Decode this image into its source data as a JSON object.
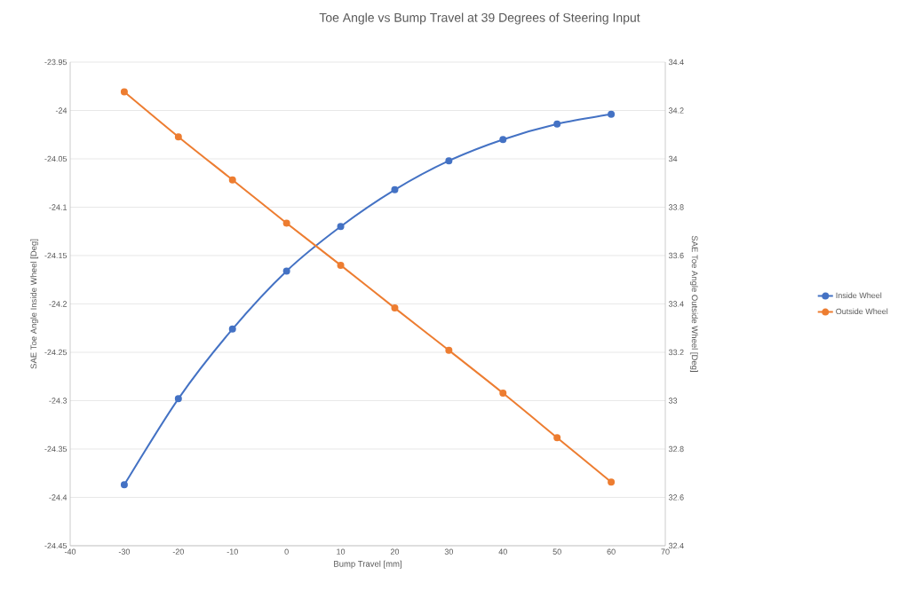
{
  "chart_data": {
    "type": "line",
    "title": "Toe Angle vs Bump Travel at 39 Degrees of Steering Input",
    "xlabel": "Bump Travel [mm]",
    "ylabel": "SAE Toe Angle Inside Wheel [Deg]",
    "y2label": "SAE Toe Angle Outside Wheel [Deg]",
    "x": [
      -30,
      -20,
      -10,
      0,
      10,
      20,
      30,
      40,
      50,
      60
    ],
    "xlim": [
      -40,
      70
    ],
    "xticks": [
      -40,
      -30,
      -20,
      -10,
      0,
      10,
      20,
      30,
      40,
      50,
      60,
      70
    ],
    "ylim": [
      -24.45,
      -23.95
    ],
    "yticks": [
      -24.45,
      -24.4,
      -24.35,
      -24.3,
      -24.25,
      -24.2,
      -24.15,
      -24.1,
      -24.05,
      -24,
      -23.95
    ],
    "y2lim": [
      32.4,
      34.4
    ],
    "y2ticks": [
      32.4,
      32.6,
      32.8,
      33,
      33.2,
      33.4,
      33.6,
      33.8,
      34,
      34.2,
      34.4
    ],
    "series": [
      {
        "name": "Inside Wheel",
        "color": "#4472c4",
        "values": [
          -24.387,
          -24.298,
          -24.226,
          -24.166,
          -24.12,
          -24.082,
          -24.052,
          -24.03,
          -24.014,
          -24.004
        ]
      },
      {
        "name": "Outside Wheel",
        "color": "#ed7d31",
        "axis": "y2",
        "values": [
          34.277,
          34.091,
          33.913,
          33.734,
          33.56,
          33.383,
          33.208,
          33.031,
          32.847,
          32.663
        ]
      }
    ],
    "grid": "y",
    "legend": "right",
    "marker": "circle"
  }
}
